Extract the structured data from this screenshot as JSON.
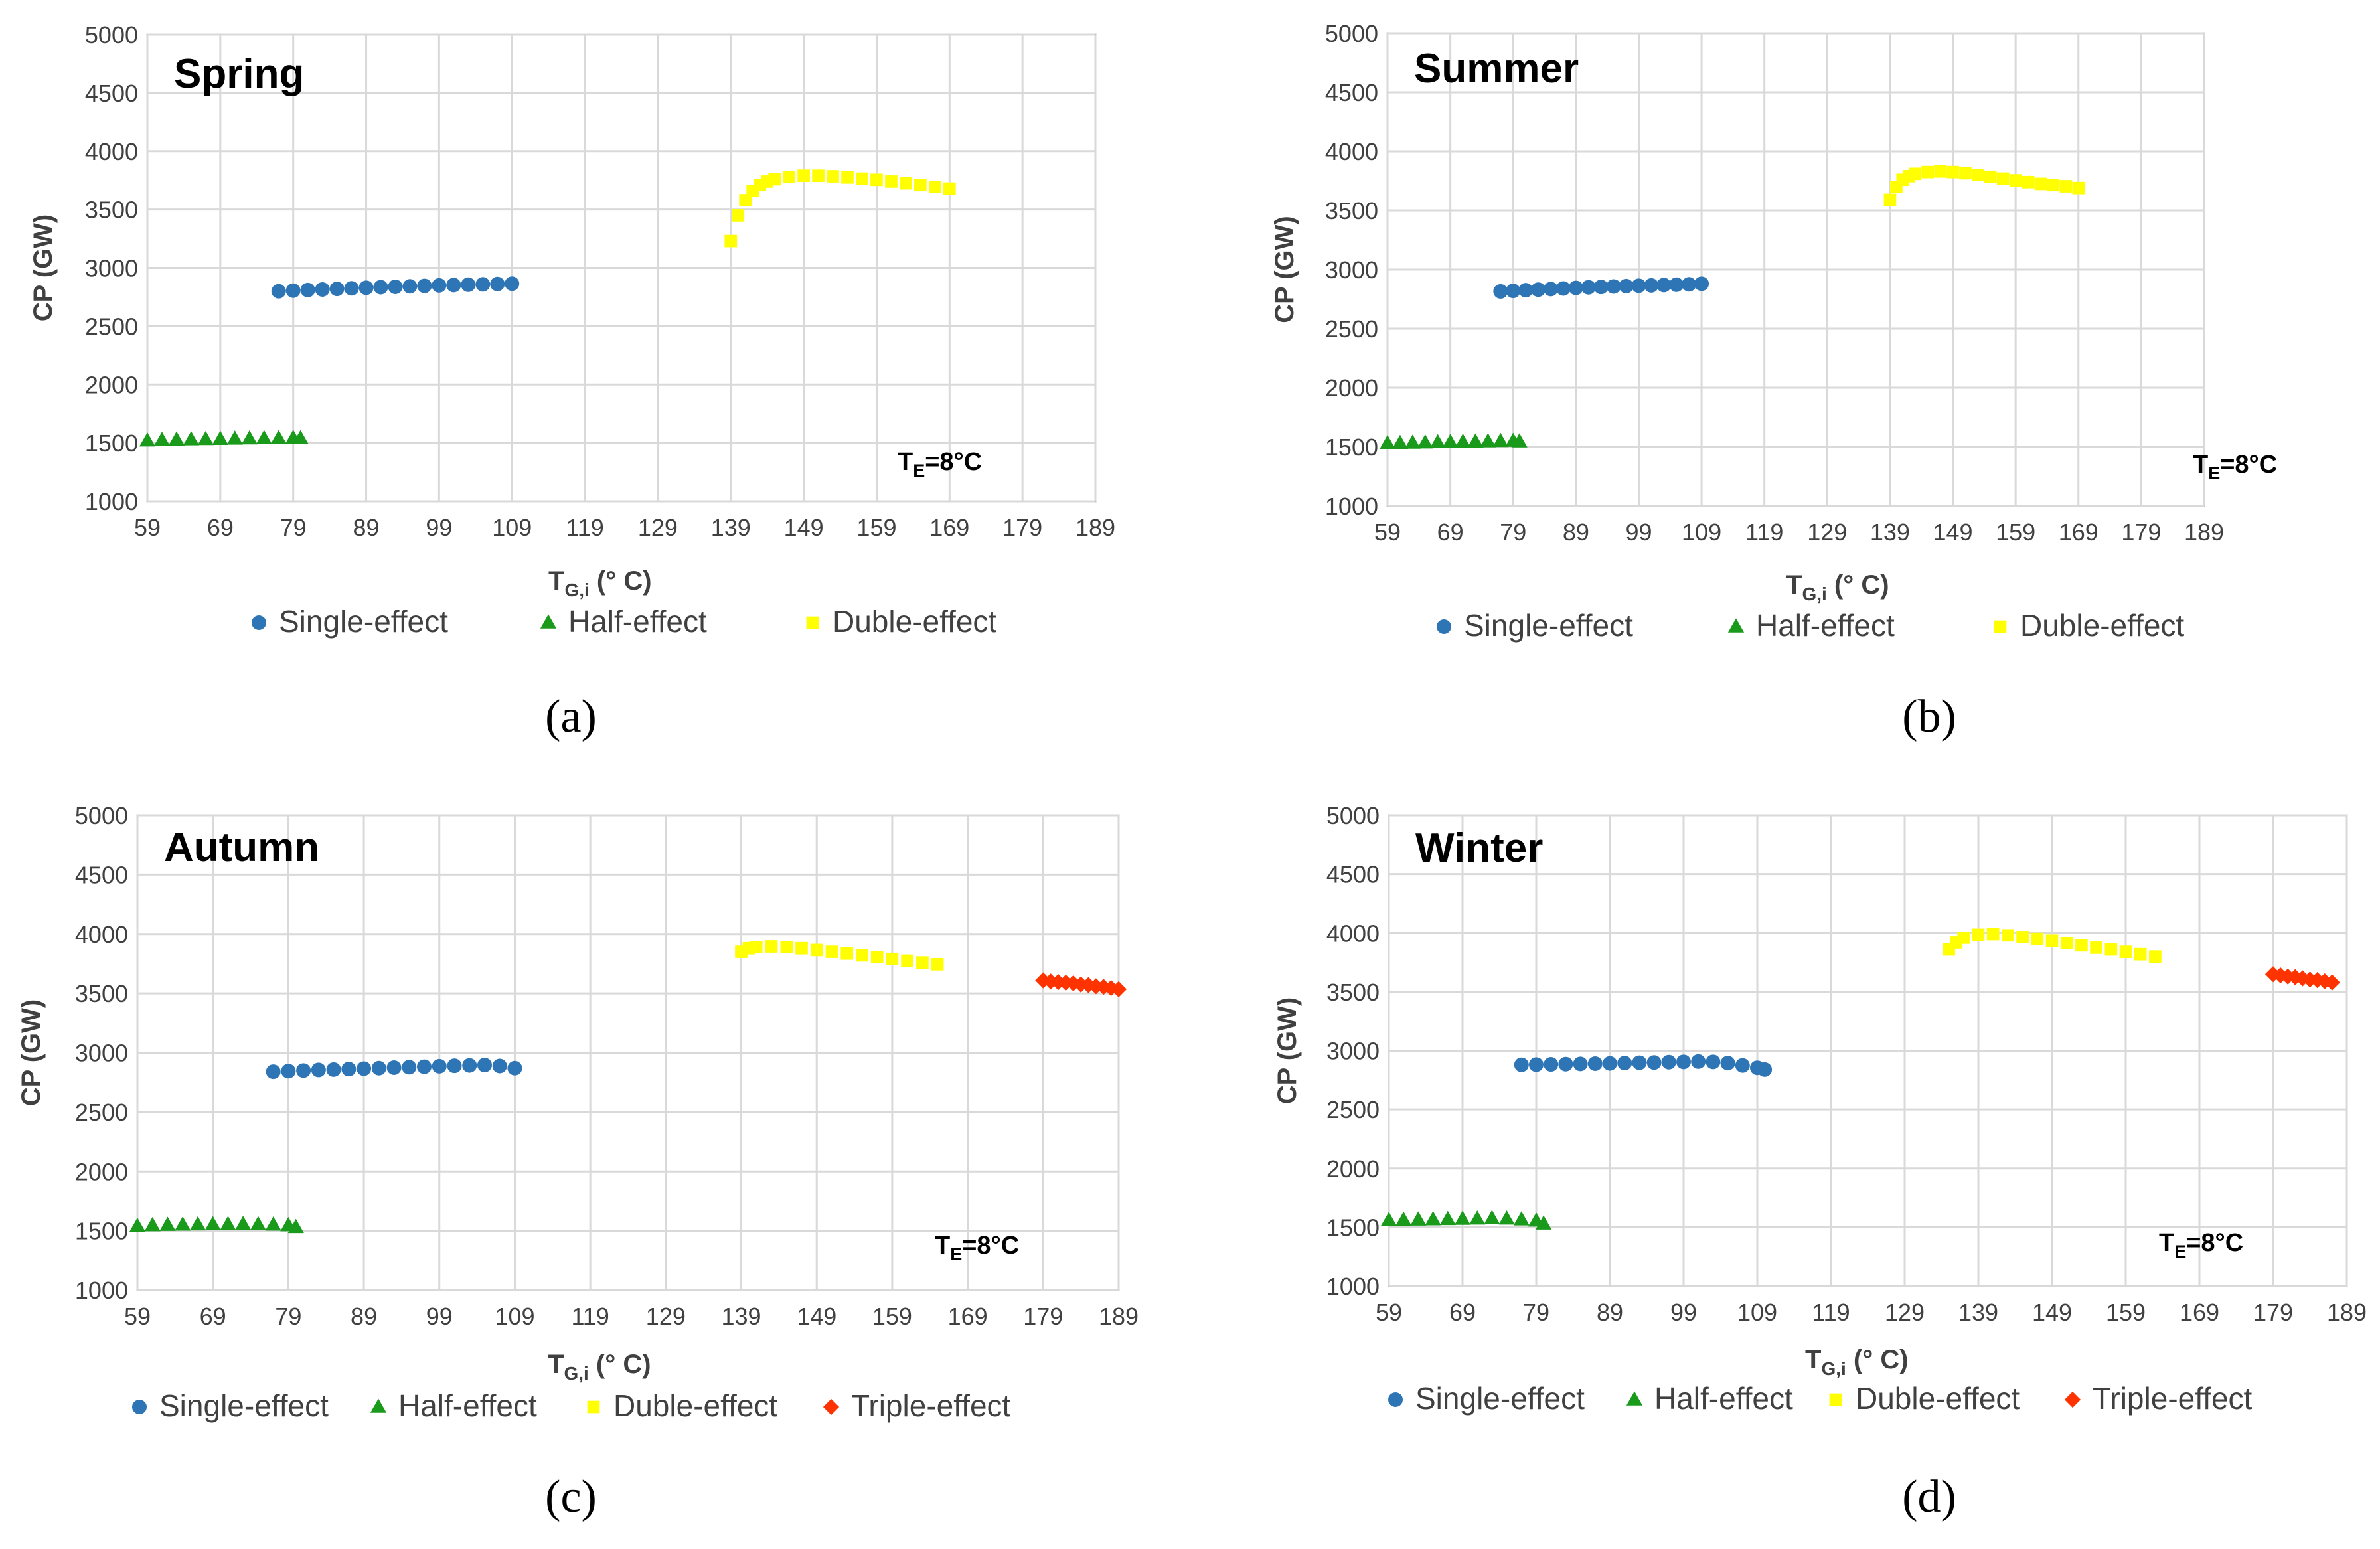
{
  "captions": [
    "(a)",
    "(b)",
    "(c)",
    "(d)"
  ],
  "annotation": {
    "base": "T",
    "sub": "E",
    "rest": "=8°C"
  },
  "xlabel": {
    "base": "T",
    "sub": "G,i",
    "rest": " (° C)"
  },
  "ylabel": "CP (GW)",
  "colors": {
    "grid": "#d9d9d9",
    "axis": "#bfbfbf",
    "single": "#2e75b6",
    "half": "#1a9a1a",
    "duble": "#ffff00",
    "triple": "#ff3300"
  },
  "chart_data": [
    {
      "type": "scatter",
      "title": "Spring",
      "xlabel": "TG,i (° C)",
      "ylabel": "CP (GW)",
      "xlim": [
        59,
        189
      ],
      "ylim": [
        1000,
        5000
      ],
      "xticks": [
        "59",
        "69",
        "79",
        "89",
        "99",
        "109",
        "119",
        "129",
        "139",
        "149",
        "159",
        "169",
        "179",
        "189"
      ],
      "yticks": [
        "1000",
        "1500",
        "2000",
        "2500",
        "3000",
        "3500",
        "4000",
        "4500",
        "5000"
      ],
      "legend": [
        "Single-effect",
        "Half-effect",
        "Duble-effect"
      ],
      "series": [
        {
          "name": "Single-effect",
          "marker": "circle",
          "x": [
            77,
            79,
            81,
            83,
            85,
            87,
            89,
            91,
            93,
            95,
            97,
            99,
            101,
            103,
            105,
            107,
            109
          ],
          "y": [
            2800,
            2805,
            2810,
            2815,
            2820,
            2825,
            2830,
            2835,
            2838,
            2842,
            2846,
            2850,
            2853,
            2856,
            2859,
            2862,
            2865
          ]
        },
        {
          "name": "Half-effect",
          "marker": "triangle",
          "x": [
            59,
            61,
            63,
            65,
            67,
            69,
            71,
            73,
            75,
            77,
            79,
            80
          ],
          "y": [
            1520,
            1525,
            1528,
            1530,
            1532,
            1534,
            1536,
            1538,
            1540,
            1541,
            1542,
            1540
          ]
        },
        {
          "name": "Duble-effect",
          "marker": "square",
          "x": [
            139,
            140,
            141,
            142,
            143,
            144,
            145,
            147,
            149,
            151,
            153,
            155,
            157,
            159,
            161,
            163,
            165,
            167,
            169
          ],
          "y": [
            3230,
            3450,
            3580,
            3660,
            3710,
            3740,
            3760,
            3780,
            3790,
            3790,
            3785,
            3775,
            3765,
            3755,
            3740,
            3725,
            3710,
            3695,
            3680
          ]
        }
      ]
    },
    {
      "type": "scatter",
      "title": "Summer",
      "xlabel": "TG,i (° C)",
      "ylabel": "CP (GW)",
      "xlim": [
        59,
        189
      ],
      "ylim": [
        1000,
        5000
      ],
      "xticks": [
        "59",
        "69",
        "79",
        "89",
        "99",
        "109",
        "119",
        "129",
        "139",
        "149",
        "159",
        "169",
        "179",
        "189"
      ],
      "yticks": [
        "1000",
        "1500",
        "2000",
        "2500",
        "3000",
        "3500",
        "4000",
        "4500",
        "5000"
      ],
      "legend": [
        "Single-effect",
        "Half-effect",
        "Duble-effect"
      ],
      "series": [
        {
          "name": "Single-effect",
          "marker": "circle",
          "x": [
            77,
            79,
            81,
            83,
            85,
            87,
            89,
            91,
            93,
            95,
            97,
            99,
            101,
            103,
            105,
            107,
            109
          ],
          "y": [
            2815,
            2820,
            2825,
            2830,
            2835,
            2840,
            2845,
            2850,
            2853,
            2857,
            2860,
            2863,
            2866,
            2869,
            2872,
            2875,
            2880
          ]
        },
        {
          "name": "Half-effect",
          "marker": "triangle",
          "x": [
            59,
            61,
            63,
            65,
            67,
            69,
            71,
            73,
            75,
            77,
            79,
            80
          ],
          "y": [
            1530,
            1532,
            1534,
            1536,
            1538,
            1540,
            1542,
            1544,
            1546,
            1548,
            1550,
            1545
          ]
        },
        {
          "name": "Duble-effect",
          "marker": "square",
          "x": [
            139,
            140,
            141,
            142,
            143,
            145,
            147,
            149,
            151,
            153,
            155,
            157,
            159,
            161,
            163,
            165,
            167,
            169
          ],
          "y": [
            3590,
            3700,
            3760,
            3790,
            3810,
            3825,
            3830,
            3825,
            3815,
            3800,
            3785,
            3770,
            3755,
            3740,
            3725,
            3715,
            3705,
            3690
          ]
        }
      ]
    },
    {
      "type": "scatter",
      "title": "Autumn",
      "xlabel": "TG,i (° C)",
      "ylabel": "CP (GW)",
      "xlim": [
        59,
        189
      ],
      "ylim": [
        1000,
        5000
      ],
      "xticks": [
        "59",
        "69",
        "79",
        "89",
        "99",
        "109",
        "119",
        "129",
        "139",
        "149",
        "159",
        "169",
        "179",
        "189"
      ],
      "yticks": [
        "1000",
        "1500",
        "2000",
        "2500",
        "3000",
        "3500",
        "4000",
        "4500",
        "5000"
      ],
      "legend": [
        "Single-effect",
        "Half-effect",
        "Duble-effect",
        "Triple-effect"
      ],
      "series": [
        {
          "name": "Single-effect",
          "marker": "circle",
          "x": [
            77,
            79,
            81,
            83,
            85,
            87,
            89,
            91,
            93,
            95,
            97,
            99,
            101,
            103,
            105,
            107,
            109
          ],
          "y": [
            2840,
            2845,
            2850,
            2855,
            2858,
            2862,
            2866,
            2870,
            2874,
            2878,
            2882,
            2886,
            2890,
            2893,
            2896,
            2888,
            2870
          ]
        },
        {
          "name": "Half-effect",
          "marker": "triangle",
          "x": [
            59,
            61,
            63,
            65,
            67,
            69,
            71,
            73,
            75,
            77,
            79,
            80
          ],
          "y": [
            1540,
            1545,
            1548,
            1550,
            1552,
            1553,
            1554,
            1555,
            1553,
            1550,
            1545,
            1530
          ]
        },
        {
          "name": "Duble-effect",
          "marker": "square",
          "x": [
            139,
            140,
            141,
            143,
            145,
            147,
            149,
            151,
            153,
            155,
            157,
            159,
            161,
            163,
            165
          ],
          "y": [
            3850,
            3880,
            3890,
            3895,
            3890,
            3880,
            3865,
            3850,
            3835,
            3820,
            3805,
            3790,
            3775,
            3760,
            3745
          ]
        },
        {
          "name": "Triple-effect",
          "marker": "diamond",
          "x": [
            179,
            180,
            181,
            182,
            183,
            184,
            185,
            186,
            187,
            188,
            189
          ],
          "y": [
            3610,
            3600,
            3595,
            3590,
            3585,
            3575,
            3570,
            3560,
            3555,
            3545,
            3535
          ]
        }
      ]
    },
    {
      "type": "scatter",
      "title": "Winter",
      "xlabel": "TG,i (° C)",
      "ylabel": "CP (GW)",
      "xlim": [
        59,
        189
      ],
      "ylim": [
        1000,
        5000
      ],
      "xticks": [
        "59",
        "69",
        "79",
        "89",
        "99",
        "109",
        "119",
        "129",
        "139",
        "149",
        "159",
        "169",
        "179",
        "189"
      ],
      "yticks": [
        "1000",
        "1500",
        "2000",
        "2500",
        "3000",
        "3500",
        "4000",
        "4500",
        "5000"
      ],
      "legend": [
        "Single-effect",
        "Half-effect",
        "Duble-effect",
        "Triple-effect"
      ],
      "series": [
        {
          "name": "Single-effect",
          "marker": "circle",
          "x": [
            77,
            79,
            81,
            83,
            85,
            87,
            89,
            91,
            93,
            95,
            97,
            99,
            101,
            103,
            105,
            107,
            109,
            110
          ],
          "y": [
            2880,
            2882,
            2884,
            2886,
            2888,
            2890,
            2892,
            2895,
            2898,
            2900,
            2903,
            2905,
            2908,
            2905,
            2895,
            2875,
            2855,
            2840
          ]
        },
        {
          "name": "Half-effect",
          "marker": "triangle",
          "x": [
            59,
            61,
            63,
            65,
            67,
            69,
            71,
            73,
            75,
            77,
            79,
            80
          ],
          "y": [
            1560,
            1562,
            1564,
            1566,
            1568,
            1570,
            1572,
            1575,
            1572,
            1565,
            1555,
            1530
          ]
        },
        {
          "name": "Duble-effect",
          "marker": "square",
          "x": [
            135,
            136,
            137,
            139,
            141,
            143,
            145,
            147,
            149,
            151,
            153,
            155,
            157,
            159,
            161,
            163
          ],
          "y": [
            3860,
            3920,
            3960,
            3985,
            3990,
            3980,
            3965,
            3950,
            3935,
            3915,
            3895,
            3875,
            3860,
            3840,
            3820,
            3800
          ]
        },
        {
          "name": "Triple-effect",
          "marker": "diamond",
          "x": [
            179,
            180,
            181,
            182,
            183,
            184,
            185,
            186,
            187
          ],
          "y": [
            3650,
            3640,
            3630,
            3625,
            3615,
            3605,
            3600,
            3590,
            3580
          ]
        }
      ]
    }
  ]
}
